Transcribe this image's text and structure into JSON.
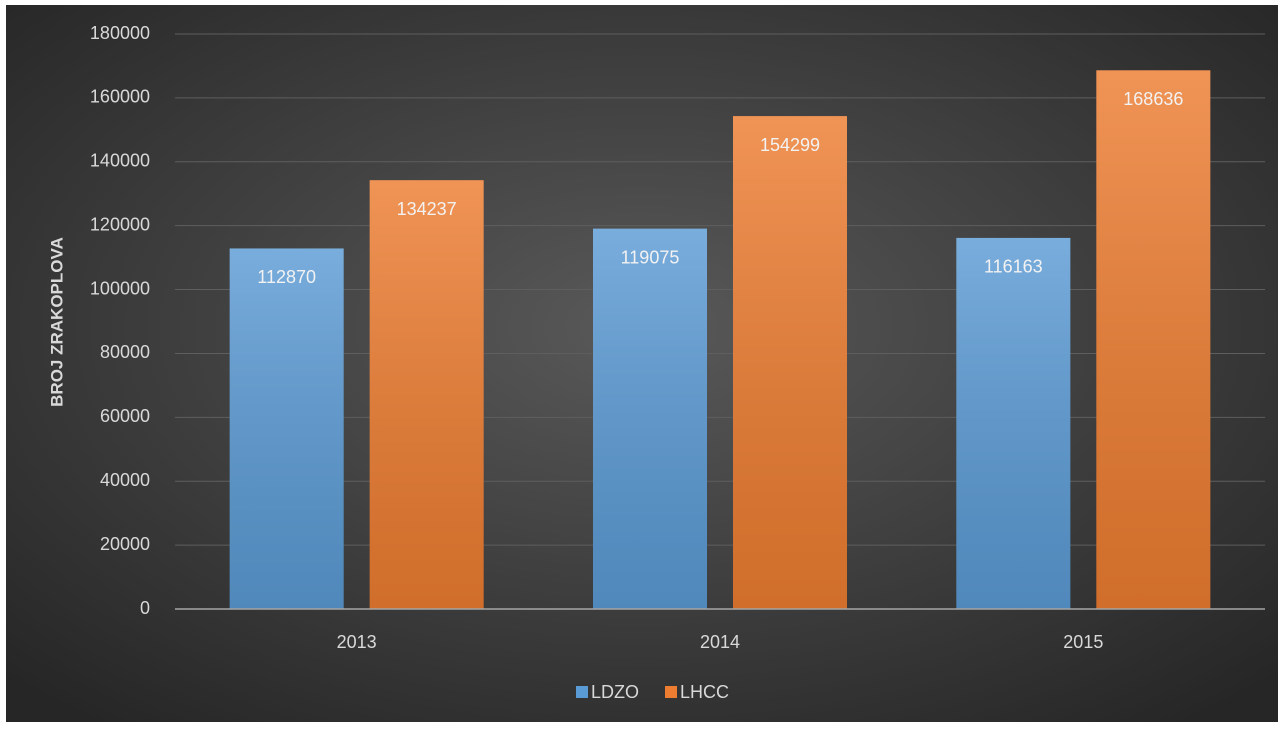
{
  "chart_data": {
    "type": "bar",
    "y_label": "BROJ ZRAKOPLOVA",
    "categories": [
      "2013",
      "2014",
      "2015"
    ],
    "series": [
      {
        "name": "LDZO",
        "color": "#5b9bd5",
        "values": [
          112870,
          119075,
          116163
        ]
      },
      {
        "name": "LHCC",
        "color": "#ed7d31",
        "values": [
          134237,
          154299,
          168636
        ]
      }
    ],
    "ylim": [
      0,
      180000
    ],
    "yticks": [
      0,
      20000,
      40000,
      60000,
      80000,
      100000,
      120000,
      140000,
      160000,
      180000
    ],
    "grid": true,
    "legend": "bottom",
    "data_labels": true
  }
}
